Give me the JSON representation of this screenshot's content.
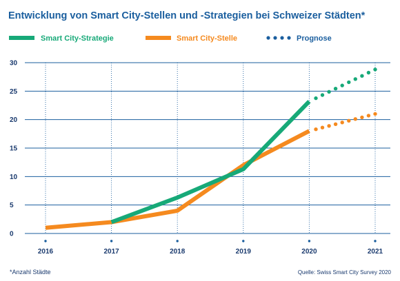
{
  "chart_data": {
    "type": "line",
    "title": "Entwicklung von Smart City-Stellen und -Strategien bei Schweizer Städten*",
    "x": [
      "2016",
      "2017",
      "2018",
      "2019",
      "2020",
      "2021"
    ],
    "y_ticks": [
      "0",
      "5",
      "10",
      "15",
      "20",
      "25",
      "30"
    ],
    "ylim": [
      0,
      30
    ],
    "grid": "horizontal solid, vertical dotted",
    "legend_position": "top-left",
    "legend": {
      "strategy_label": "Smart City-Strategie",
      "office_label": "Smart City-Stelle",
      "forecast_label": "Prognose"
    },
    "series": [
      {
        "name": "Smart City-Strategie",
        "color": "#17a978",
        "actual": [
          [
            2017,
            2
          ],
          [
            2018,
            6.3
          ],
          [
            2019,
            11.3
          ],
          [
            2020,
            23.2
          ]
        ],
        "forecast": [
          [
            2020,
            23.2
          ],
          [
            2021,
            28.8
          ]
        ]
      },
      {
        "name": "Smart City-Stelle",
        "color": "#f58a1f",
        "actual": [
          [
            2016,
            1
          ],
          [
            2017,
            2
          ],
          [
            2018,
            4
          ],
          [
            2019,
            12
          ],
          [
            2020,
            18
          ]
        ],
        "forecast": [
          [
            2020,
            18
          ],
          [
            2021,
            21
          ]
        ]
      }
    ],
    "forecast_color": "#1a5e9e",
    "footnote": "*Anzahl Städte",
    "source": "Quelle: Swiss Smart City Survey 2020"
  }
}
